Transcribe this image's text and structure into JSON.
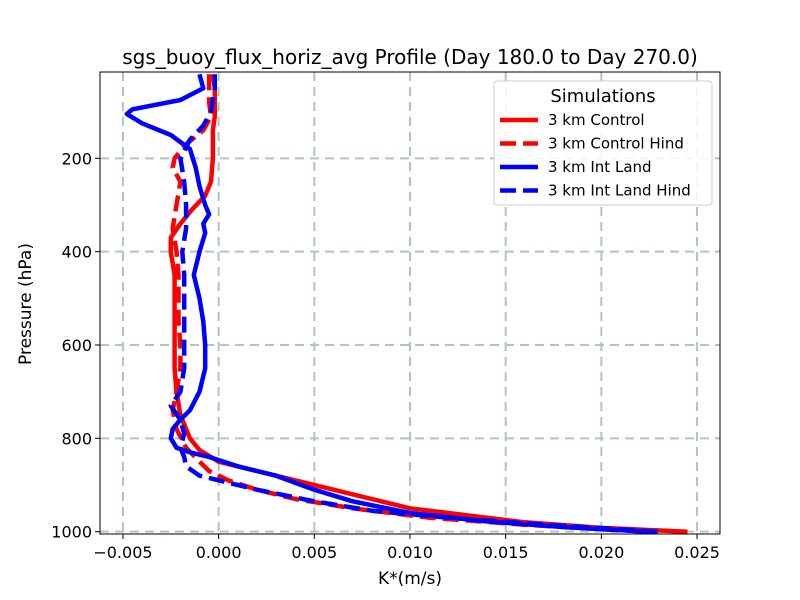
{
  "chart_data": {
    "type": "line",
    "title": "sgs_buoy_flux_horiz_avg Profile (Day 180.0 to Day 270.0)",
    "xlabel": "K*(m/s)",
    "ylabel": "Pressure (hPa)",
    "xlim": [
      -0.0062,
      0.0262
    ],
    "ylim": [
      1005,
      15
    ],
    "y_inverted": true,
    "grid": true,
    "grid_style": "dashed",
    "legend_title": "Simulations",
    "legend_position": "upper-right",
    "x_ticks": [
      -0.005,
      0.0,
      0.005,
      0.01,
      0.015,
      0.02,
      0.025
    ],
    "x_tick_labels": [
      "−0.005",
      "0.000",
      "0.005",
      "0.010",
      "0.015",
      "0.020",
      "0.025"
    ],
    "y_ticks": [
      200,
      400,
      600,
      800,
      1000
    ],
    "y_tick_labels": [
      "200",
      "400",
      "600",
      "800",
      "1000"
    ],
    "series": [
      {
        "name": "3 km Control",
        "color": "#ff0000",
        "dash": "solid",
        "points": [
          [
            -0.0003,
            20
          ],
          [
            -0.0002,
            50
          ],
          [
            -0.0002,
            80
          ],
          [
            -0.0002,
            110
          ],
          [
            -0.0003,
            140
          ],
          [
            -0.0003,
            200
          ],
          [
            -0.0004,
            250
          ],
          [
            -0.0007,
            280
          ],
          [
            -0.0014,
            310
          ],
          [
            -0.002,
            340
          ],
          [
            -0.0025,
            370
          ],
          [
            -0.0025,
            400
          ],
          [
            -0.0023,
            450
          ],
          [
            -0.0023,
            500
          ],
          [
            -0.0023,
            550
          ],
          [
            -0.0023,
            600
          ],
          [
            -0.0023,
            650
          ],
          [
            -0.0022,
            700
          ],
          [
            -0.002,
            750
          ],
          [
            -0.0015,
            800
          ],
          [
            -0.001,
            825
          ],
          [
            0.0,
            850
          ],
          [
            0.002,
            870
          ],
          [
            0.004,
            890
          ],
          [
            0.006,
            910
          ],
          [
            0.008,
            930
          ],
          [
            0.01,
            950
          ],
          [
            0.013,
            965
          ],
          [
            0.016,
            980
          ],
          [
            0.02,
            992
          ],
          [
            0.0245,
            1000
          ]
        ]
      },
      {
        "name": "3 km Control Hind",
        "color": "#ff0000",
        "dash": "dashed",
        "points": [
          [
            -0.0005,
            20
          ],
          [
            -0.0005,
            50
          ],
          [
            -0.0005,
            80
          ],
          [
            -0.0004,
            110
          ],
          [
            -0.0008,
            140
          ],
          [
            -0.0017,
            170
          ],
          [
            -0.0023,
            200
          ],
          [
            -0.0024,
            220
          ],
          [
            -0.002,
            250
          ],
          [
            -0.0022,
            300
          ],
          [
            -0.0024,
            350
          ],
          [
            -0.0022,
            400
          ],
          [
            -0.0021,
            450
          ],
          [
            -0.0021,
            500
          ],
          [
            -0.0021,
            550
          ],
          [
            -0.002,
            600
          ],
          [
            -0.002,
            650
          ],
          [
            -0.0022,
            700
          ],
          [
            -0.0024,
            740
          ],
          [
            -0.0022,
            780
          ],
          [
            -0.0017,
            820
          ],
          [
            -0.001,
            850
          ],
          [
            -0.0005,
            870
          ],
          [
            0.0005,
            890
          ],
          [
            0.002,
            910
          ],
          [
            0.004,
            930
          ],
          [
            0.007,
            950
          ],
          [
            0.011,
            970
          ],
          [
            0.016,
            985
          ],
          [
            0.02,
            995
          ],
          [
            0.0225,
            1000
          ]
        ]
      },
      {
        "name": "3 km Int Land",
        "color": "#0000ff",
        "dash": "solid",
        "points": [
          [
            -0.001,
            20
          ],
          [
            -0.0008,
            50
          ],
          [
            -0.002,
            75
          ],
          [
            -0.0045,
            95
          ],
          [
            -0.0048,
            105
          ],
          [
            -0.004,
            125
          ],
          [
            -0.0025,
            150
          ],
          [
            -0.0015,
            180
          ],
          [
            -0.0012,
            220
          ],
          [
            -0.001,
            260
          ],
          [
            -0.0007,
            300
          ],
          [
            -0.0005,
            320
          ],
          [
            -0.0008,
            340
          ],
          [
            -0.0007,
            360
          ],
          [
            -0.001,
            400
          ],
          [
            -0.0013,
            450
          ],
          [
            -0.001,
            500
          ],
          [
            -0.0008,
            550
          ],
          [
            -0.0007,
            600
          ],
          [
            -0.0007,
            650
          ],
          [
            -0.001,
            700
          ],
          [
            -0.0015,
            740
          ],
          [
            -0.002,
            760
          ],
          [
            -0.0024,
            780
          ],
          [
            -0.0025,
            800
          ],
          [
            -0.0022,
            820
          ],
          [
            -0.0015,
            830
          ],
          [
            -0.0005,
            840
          ],
          [
            0.001,
            860
          ],
          [
            0.003,
            880
          ],
          [
            0.005,
            910
          ],
          [
            0.007,
            935
          ],
          [
            0.01,
            960
          ],
          [
            0.014,
            978
          ],
          [
            0.018,
            990
          ],
          [
            0.0225,
            1000
          ]
        ]
      },
      {
        "name": "3 km Int Land Hind",
        "color": "#0000ff",
        "dash": "dashed",
        "points": [
          [
            -0.0002,
            20
          ],
          [
            -0.0002,
            50
          ],
          [
            -0.0004,
            100
          ],
          [
            -0.0008,
            130
          ],
          [
            -0.0015,
            160
          ],
          [
            -0.002,
            200
          ],
          [
            -0.0018,
            250
          ],
          [
            -0.0017,
            300
          ],
          [
            -0.0017,
            350
          ],
          [
            -0.0019,
            400
          ],
          [
            -0.0018,
            450
          ],
          [
            -0.0018,
            500
          ],
          [
            -0.0018,
            550
          ],
          [
            -0.0018,
            600
          ],
          [
            -0.0018,
            650
          ],
          [
            -0.002,
            700
          ],
          [
            -0.0025,
            730
          ],
          [
            -0.002,
            760
          ],
          [
            -0.0018,
            790
          ],
          [
            -0.002,
            820
          ],
          [
            -0.0018,
            840
          ],
          [
            -0.0017,
            860
          ],
          [
            -0.001,
            880
          ],
          [
            0.0,
            890
          ],
          [
            0.002,
            910
          ],
          [
            0.005,
            935
          ],
          [
            0.008,
            955
          ],
          [
            0.012,
            970
          ],
          [
            0.017,
            985
          ],
          [
            0.021,
            995
          ],
          [
            0.023,
            1000
          ]
        ]
      }
    ]
  }
}
